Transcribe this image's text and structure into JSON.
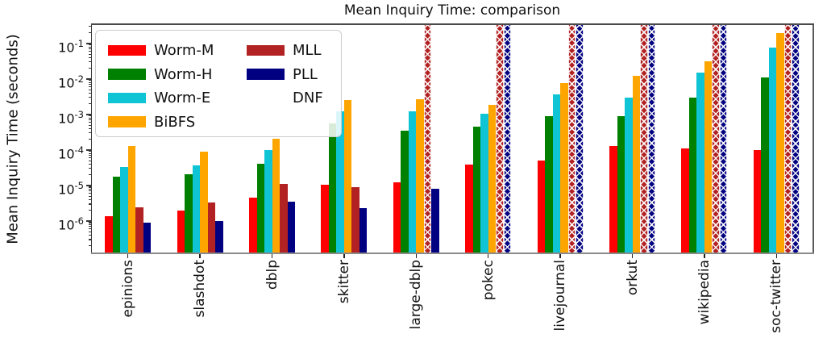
{
  "chart_data": {
    "type": "bar",
    "title": "Mean Inquiry Time: comparison",
    "xlabel": "",
    "ylabel": "Mean Inquiry Time (seconds)",
    "yscale": "log",
    "ylim": [
      1.3e-07,
      0.33
    ],
    "ytick_exponents": [
      -1,
      -2,
      -3,
      -4,
      -5,
      -6
    ],
    "grid": false,
    "legend_position": "upper left",
    "dnf_meaning": "DNF",
    "categories": [
      "epinions",
      "slashdot",
      "dblp",
      "skitter",
      "large-dblp",
      "pokec",
      "livejournal",
      "orkut",
      "wikipedia",
      "soc-twitter"
    ],
    "series": [
      {
        "name": "Worm-M",
        "color": "#ff0000",
        "values": [
          1.4e-06,
          2e-06,
          4.5e-06,
          1.05e-05,
          1.2e-05,
          3.8e-05,
          5e-05,
          0.00013,
          0.00011,
          0.0001
        ]
      },
      {
        "name": "Worm-H",
        "color": "#008000",
        "values": [
          1.8e-05,
          2.1e-05,
          4.2e-05,
          0.00056,
          0.00035,
          0.00046,
          0.0009,
          0.0009,
          0.003,
          0.011
        ]
      },
      {
        "name": "Worm-E",
        "color": "#0fc4d4",
        "values": [
          3.4e-05,
          3.6e-05,
          0.0001,
          0.0012,
          0.0012,
          0.00105,
          0.0037,
          0.003,
          0.015,
          0.075
        ]
      },
      {
        "name": "BiBFS",
        "color": "#ffa500",
        "values": [
          0.00013,
          8.8e-05,
          0.00021,
          0.0026,
          0.0027,
          0.0019,
          0.0078,
          0.012,
          0.032,
          0.2
        ]
      },
      {
        "name": "MLL",
        "color": "#b22222",
        "values": [
          2.4e-06,
          3.4e-06,
          1.1e-05,
          9e-06,
          "DNF",
          "DNF",
          "DNF",
          "DNF",
          "DNF",
          "DNF"
        ]
      },
      {
        "name": "PLL",
        "color": "#000080",
        "values": [
          9e-07,
          1e-06,
          3.5e-06,
          2.3e-06,
          8e-06,
          "DNF",
          "DNF",
          "DNF",
          "DNF",
          "DNF"
        ]
      }
    ],
    "legend": {
      "columns": [
        [
          {
            "label": "Worm-M",
            "color": "#ff0000"
          },
          {
            "label": "Worm-H",
            "color": "#008000"
          },
          {
            "label": "Worm-E",
            "color": "#0fc4d4"
          },
          {
            "label": "BiBFS",
            "color": "#ffa500"
          }
        ],
        [
          {
            "label": "MLL",
            "color": "#b22222"
          },
          {
            "label": "PLL",
            "color": "#000080"
          },
          {
            "label": "DNF",
            "color": null
          }
        ]
      ]
    }
  }
}
